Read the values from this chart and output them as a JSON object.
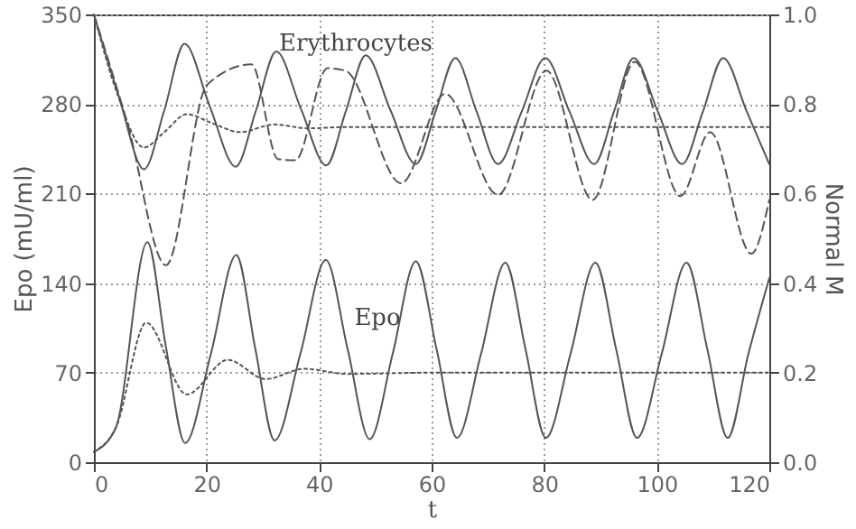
{
  "chart_data": {
    "type": "line",
    "xlabel": "t",
    "ylabel": "Epo (mU/ml)",
    "y2label": "Normal M",
    "xlim": [
      0,
      120
    ],
    "xticks": [
      0,
      20,
      40,
      60,
      80,
      100,
      120
    ],
    "ylim": [
      0,
      350
    ],
    "yticks": [
      0,
      70,
      140,
      210,
      280,
      350
    ],
    "y2lim": [
      0,
      1
    ],
    "y2ticks": [
      {
        "value": 0,
        "label": "0.0"
      },
      {
        "value": 0.2,
        "label": "0.2"
      },
      {
        "value": 0.4,
        "label": "0.4"
      },
      {
        "value": 0.6,
        "label": "0.6"
      },
      {
        "value": 0.8,
        "label": "0.8"
      },
      {
        "value": 1,
        "label": "1.0"
      }
    ],
    "grid": true,
    "annotations": [
      "Erythrocytes",
      "Epo"
    ],
    "series": [
      {
        "color": "#555555",
        "line_style": "solid",
        "x": [
          0,
          4.5,
          8.9,
          12.5,
          16.1,
          20.6,
          25.2,
          28.8,
          32.4,
          36.8,
          41.3,
          44.8,
          48.3,
          52.7,
          57.2,
          60.7,
          64.2,
          68,
          71.8,
          76,
          80.2,
          84.5,
          88.9,
          92.4,
          95.9,
          100.2,
          104.5,
          108.2,
          111.8,
          116,
          120
        ],
        "values": [
          350,
          285,
          229,
          275,
          327,
          278,
          231,
          275,
          321,
          276,
          232,
          275,
          318,
          275,
          233,
          274,
          316,
          274,
          233,
          274,
          316,
          274,
          233,
          274,
          316,
          274,
          233,
          274,
          316,
          274,
          233
        ]
      },
      {
        "color": "#555555",
        "line_style": "dashed",
        "x": [
          0,
          6,
          12.8,
          20.1,
          28,
          32.7,
          35.8,
          41.5,
          44.7,
          54.6,
          62.4,
          71.8,
          80.4,
          88.6,
          96.1,
          104.2,
          109.5,
          116.8,
          120
        ],
        "values": [
          350,
          264,
          154,
          295,
          311,
          237,
          236,
          308,
          306,
          218,
          288,
          209,
          306,
          205,
          313,
          208,
          258,
          163,
          205
        ]
      },
      {
        "color": "#555555",
        "line_style": "dotted",
        "x": [
          0,
          4,
          8.9,
          12.5,
          16.5,
          21,
          26,
          32,
          38,
          45,
          60,
          120
        ],
        "values": [
          350,
          290,
          246,
          258,
          272,
          265,
          258,
          264,
          261,
          262,
          262,
          262
        ]
      },
      {
        "color": "#555555",
        "line_style": "solid",
        "x": [
          0,
          3.9,
          9.5,
          12.8,
          16.2,
          20.8,
          25.3,
          28.7,
          32.1,
          36.7,
          41.2,
          45.1,
          49,
          53.1,
          57.2,
          60.9,
          64.5,
          68.8,
          73.1,
          76.7,
          80.3,
          84.7,
          89.1,
          92.8,
          96.5,
          100.9,
          105.3,
          109,
          112.6,
          116.3,
          120
        ],
        "values": [
          8,
          27,
          172,
          90,
          15,
          85,
          162,
          88,
          17,
          85,
          158,
          88,
          18,
          85,
          157,
          88,
          19,
          85,
          156,
          88,
          19,
          85,
          156,
          88,
          19,
          85,
          156,
          88,
          19,
          85,
          144
        ]
      },
      {
        "color": "#555555",
        "line_style": "dotted",
        "x": [
          0,
          3.9,
          9.3,
          16.5,
          23.8,
          30.5,
          37.4,
          45,
          60,
          120
        ],
        "values": [
          8,
          27,
          109,
          53,
          80,
          65,
          73,
          69,
          70,
          70
        ]
      }
    ]
  }
}
